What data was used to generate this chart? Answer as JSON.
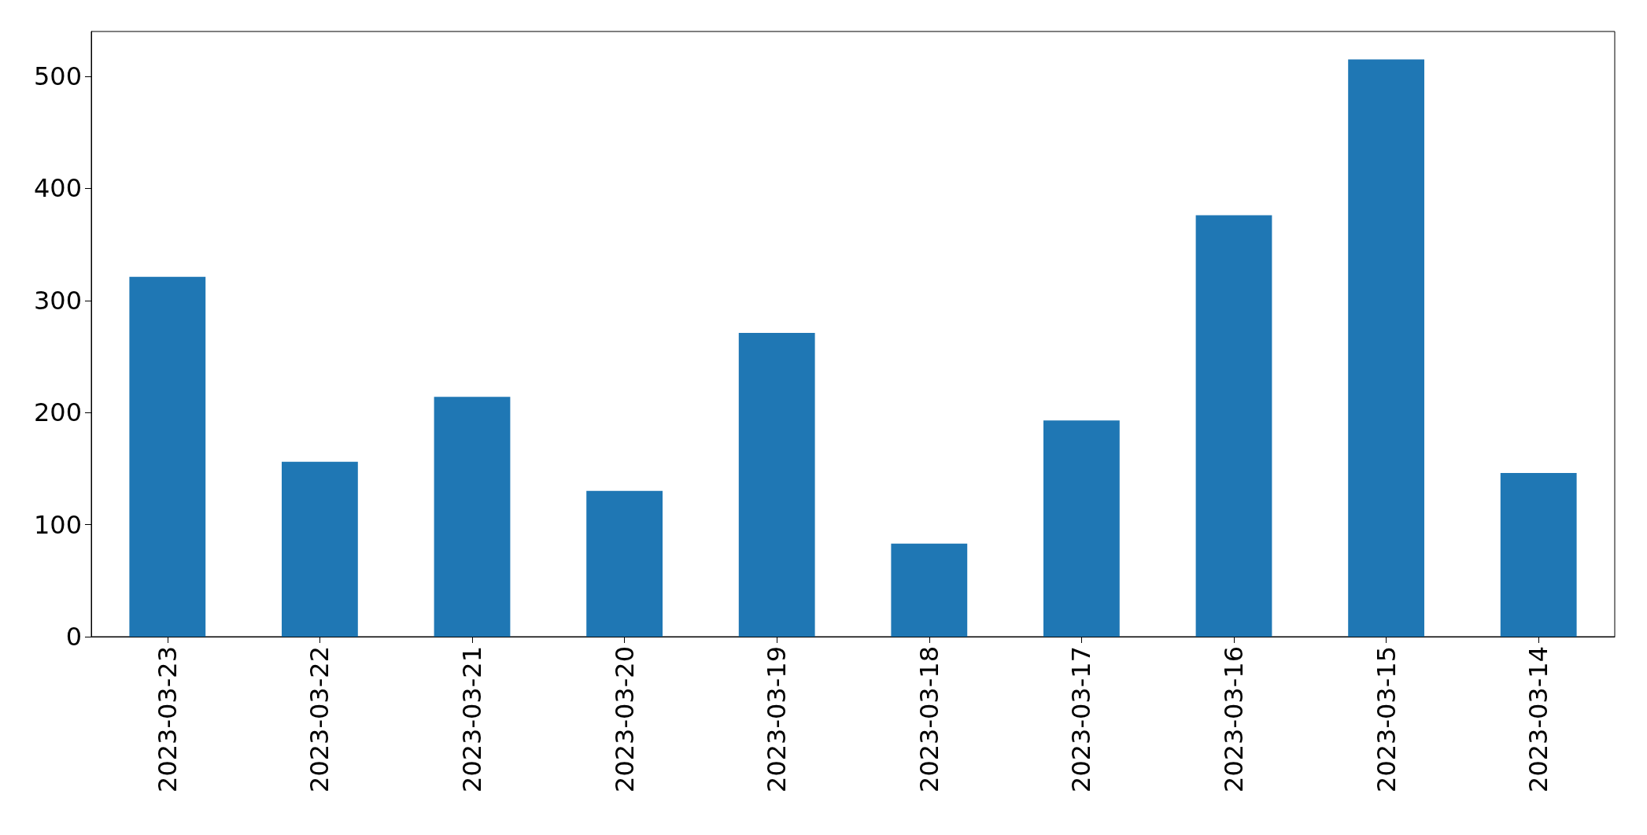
{
  "chart_data": {
    "type": "bar",
    "categories": [
      "2023-03-23",
      "2023-03-22",
      "2023-03-21",
      "2023-03-20",
      "2023-03-19",
      "2023-03-18",
      "2023-03-17",
      "2023-03-16",
      "2023-03-15",
      "2023-03-14"
    ],
    "values": [
      321,
      156,
      214,
      130,
      271,
      83,
      193,
      376,
      515,
      146
    ],
    "color": "#1f77b4",
    "ylim": [
      0,
      540
    ],
    "yticks": [
      0,
      100,
      200,
      300,
      400,
      500
    ]
  }
}
